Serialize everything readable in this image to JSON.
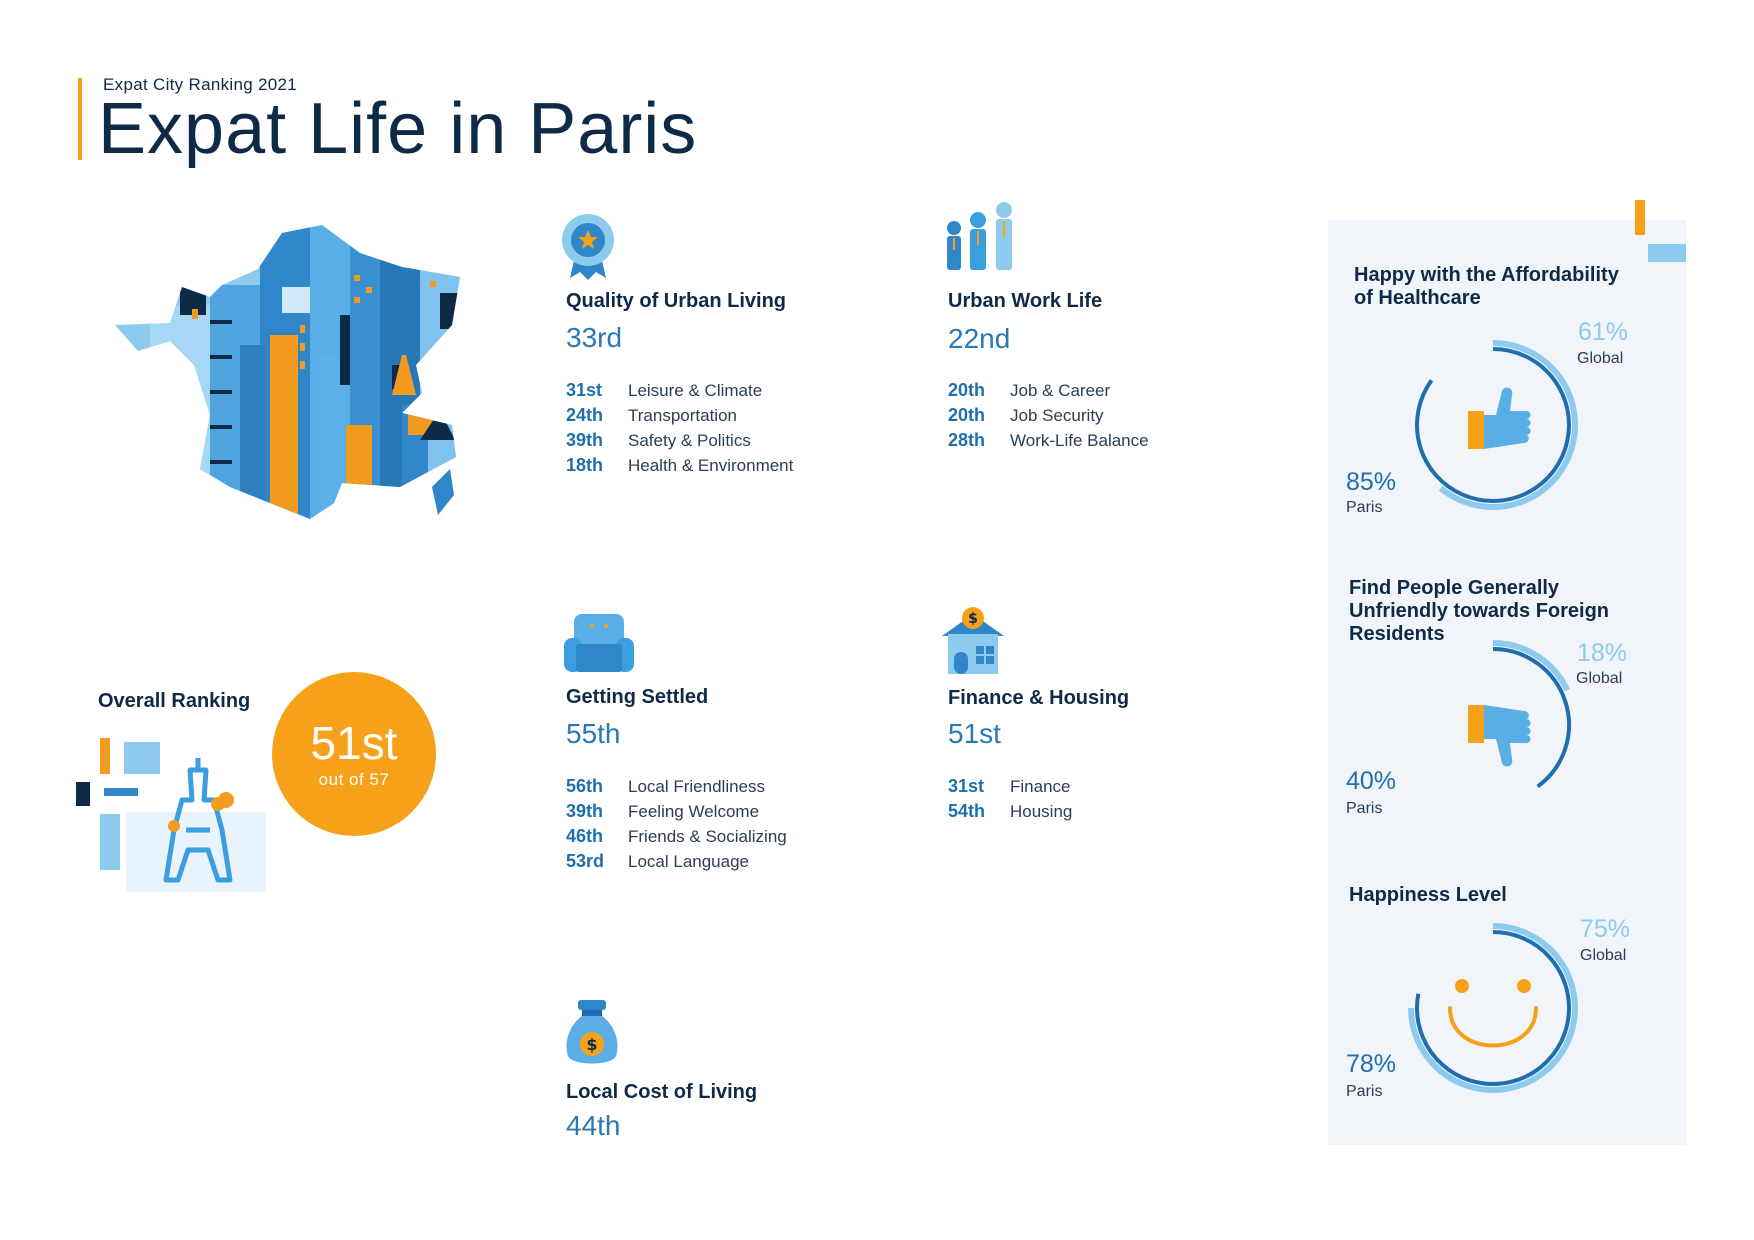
{
  "header": {
    "subtitle": "Expat City Ranking 2021",
    "title": "Expat Life in Paris"
  },
  "overall": {
    "label": "Overall Ranking",
    "rank": "51st",
    "out_of": "out of 57"
  },
  "categories": [
    {
      "icon": "award-ribbon-icon",
      "title": "Quality of Urban Living",
      "rank": "33rd",
      "items": [
        {
          "rank": "31st",
          "label": "Leisure & Climate"
        },
        {
          "rank": "24th",
          "label": "Transportation"
        },
        {
          "rank": "39th",
          "label": "Safety & Politics"
        },
        {
          "rank": "18th",
          "label": "Health & Environment"
        }
      ]
    },
    {
      "icon": "business-people-icon",
      "title": "Urban Work Life",
      "rank": "22nd",
      "items": [
        {
          "rank": "20th",
          "label": "Job & Career"
        },
        {
          "rank": "20th",
          "label": "Job Security"
        },
        {
          "rank": "28th",
          "label": "Work-Life Balance"
        }
      ]
    },
    {
      "icon": "armchair-icon",
      "title": "Getting Settled",
      "rank": "55th",
      "items": [
        {
          "rank": "56th",
          "label": "Local Friendliness"
        },
        {
          "rank": "39th",
          "label": "Feeling Welcome"
        },
        {
          "rank": "46th",
          "label": "Friends & Socializing"
        },
        {
          "rank": "53rd",
          "label": "Local Language"
        }
      ]
    },
    {
      "icon": "house-dollar-icon",
      "title": "Finance & Housing",
      "rank": "51st",
      "items": [
        {
          "rank": "31st",
          "label": "Finance"
        },
        {
          "rank": "54th",
          "label": "Housing"
        }
      ]
    },
    {
      "icon": "money-bag-icon",
      "title": "Local Cost of Living",
      "rank": "44th",
      "items": []
    }
  ],
  "stats": [
    {
      "icon": "thumbs-up-icon",
      "title_lines": [
        "Happy with the Affordability",
        "of Healthcare"
      ],
      "global_pct": "61%",
      "global_label": "Global",
      "global_value": 61,
      "paris_pct": "85%",
      "paris_label": "Paris",
      "paris_value": 85
    },
    {
      "icon": "thumbs-down-icon",
      "title_lines": [
        "Find People Generally",
        "Unfriendly towards Foreign",
        "Residents"
      ],
      "global_pct": "18%",
      "global_label": "Global",
      "global_value": 18,
      "paris_pct": "40%",
      "paris_label": "Paris",
      "paris_value": 40
    },
    {
      "icon": "smiley-face-icon",
      "title_lines": [
        "Happiness Level"
      ],
      "global_pct": "75%",
      "global_label": "Global",
      "global_value": 75,
      "paris_pct": "78%",
      "paris_label": "Paris",
      "paris_value": 78
    }
  ],
  "colors": {
    "navy": "#0e2a47",
    "blue": "#1f6fae",
    "light_blue": "#8ccbee",
    "orange": "#f7a11b",
    "panel_bg": "#f1f5f9"
  }
}
